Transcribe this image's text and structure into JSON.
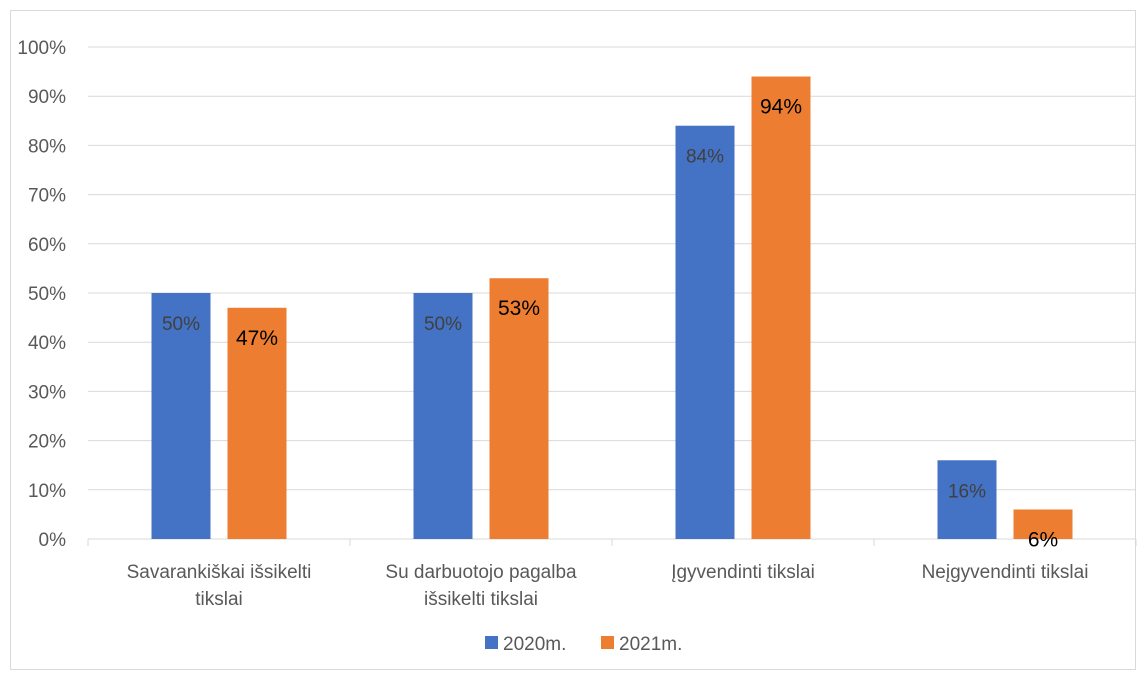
{
  "chart_data": {
    "type": "bar",
    "categories": [
      [
        "Savarankiškai išsikelti",
        "tikslai"
      ],
      [
        "Su darbuotojo pagalba",
        "išsikelti tikslai"
      ],
      [
        "Įgyvendinti tikslai"
      ],
      [
        "Neįgyvendinti tikslai"
      ]
    ],
    "series": [
      {
        "name": "2020m.",
        "color": "#4472c4",
        "values": [
          50,
          50,
          84,
          16
        ],
        "labels": [
          "50%",
          "50%",
          "84%",
          "16%"
        ],
        "label_color": "#404040"
      },
      {
        "name": "2021m.",
        "color": "#ed7d31",
        "values": [
          47,
          53,
          94,
          6
        ],
        "labels": [
          "47%",
          "53%",
          "94%",
          "6%"
        ],
        "label_color": "#000000"
      }
    ],
    "yticks": [
      "0%",
      "10%",
      "20%",
      "30%",
      "40%",
      "50%",
      "60%",
      "70%",
      "80%",
      "90%",
      "100%"
    ],
    "ylim": [
      0,
      100
    ],
    "grid": true,
    "gridline_color": "#d9d9d9",
    "legend_position": "bottom"
  }
}
